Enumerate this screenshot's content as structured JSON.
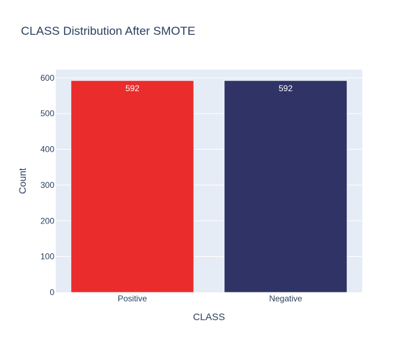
{
  "chart_data": {
    "type": "bar",
    "title": "CLASS Distribution After SMOTE",
    "xlabel": "CLASS",
    "ylabel": "Count",
    "categories": [
      "Positive",
      "Negative"
    ],
    "values": [
      592,
      592
    ],
    "data_labels": [
      "592",
      "592"
    ],
    "bar_colors": [
      "#ea2c2c",
      "#2f3366"
    ],
    "ylim": [
      0,
      623
    ],
    "yticks": [
      0,
      100,
      200,
      300,
      400,
      500,
      600
    ],
    "grid": true,
    "legend": "none",
    "plot_background": "#e5ecf6",
    "text_color": "#2a3f5f"
  }
}
